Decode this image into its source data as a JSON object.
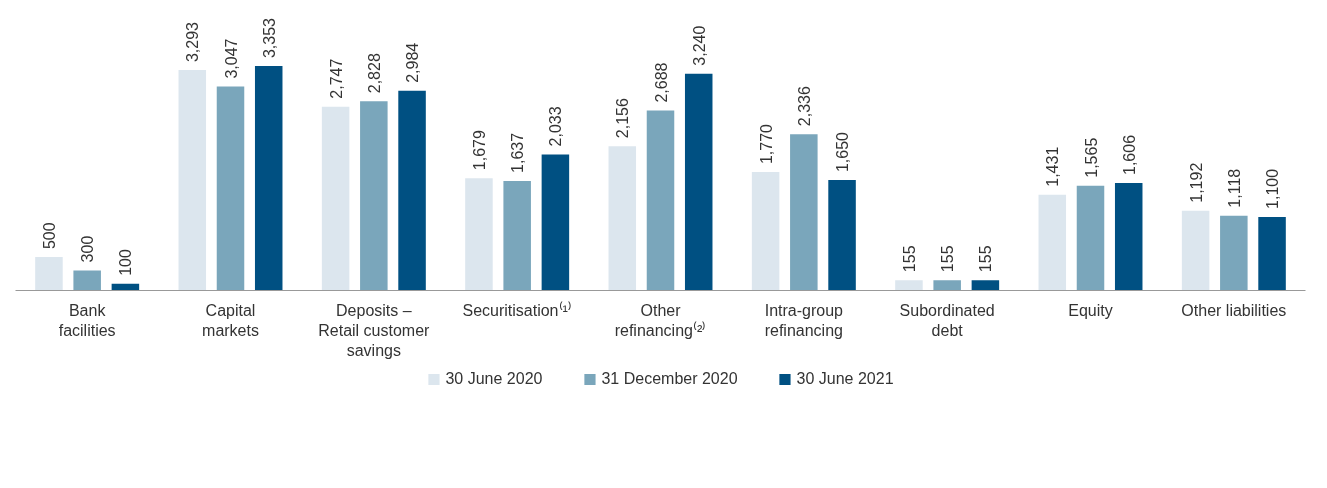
{
  "chart_data": {
    "type": "bar",
    "categories": [
      "Bank\nfacilities",
      "Capital\nmarkets",
      "Deposits –\nRetail customer\nsavings",
      "Securitisation⁽¹⁾",
      "Other\nrefinancing⁽²⁾",
      "Intra-group\nrefinancing",
      "Subordinated\ndebt",
      "Equity",
      "Other liabilities"
    ],
    "series": [
      {
        "name": "30 June 2020",
        "color": "#dce6ee",
        "values": [
          500,
          3293,
          2747,
          1679,
          2156,
          1770,
          155,
          1431,
          1192
        ],
        "value_labels": [
          "500",
          "3,293",
          "2,747",
          "1,679",
          "2,156",
          "1,770",
          "155",
          "1,431",
          "1,192"
        ]
      },
      {
        "name": "31 December 2020",
        "color": "#7aa6bb",
        "values": [
          300,
          3047,
          2828,
          1637,
          2688,
          2336,
          155,
          1565,
          1118
        ],
        "value_labels": [
          "300",
          "3,047",
          "2,828",
          "1,637",
          "2,688",
          "2,336",
          "155",
          "1,565",
          "1,118"
        ]
      },
      {
        "name": "30 June 2021",
        "color": "#005082",
        "values": [
          100,
          3353,
          2984,
          2033,
          3240,
          1650,
          155,
          1606,
          1100
        ],
        "value_labels": [
          "100",
          "3,353",
          "2,984",
          "2,033",
          "3,240",
          "1,650",
          "155",
          "1,606",
          "1,100"
        ]
      }
    ],
    "tick_labels": "x",
    "legend": "bottom"
  }
}
